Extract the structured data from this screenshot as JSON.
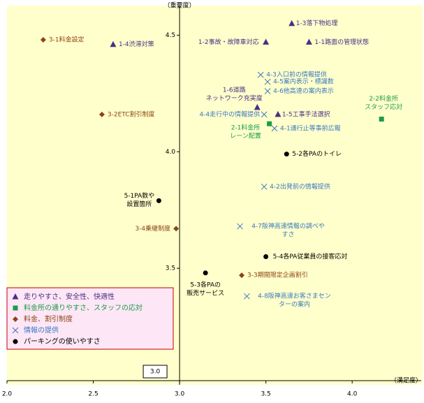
{
  "chart_data": {
    "type": "scatter",
    "y_label": "（重要度）",
    "x_label": "（満足度）",
    "xlim": [
      2.0,
      4.4
    ],
    "ylim": [
      3.0,
      4.6
    ],
    "xticks": [
      {
        "value": 2,
        "label": "2.0"
      },
      2.5,
      {
        "value": 3,
        "label": "3.0"
      },
      3.5,
      {
        "value": 4,
        "label": "4.0"
      }
    ],
    "yticks": [
      {
        "value": 3,
        "label": "3.0"
      },
      3.5,
      {
        "value": 4,
        "label": "4.0"
      },
      4.5
    ],
    "series": [
      {
        "name": "走りやすさ、安全性、快適性",
        "color": "#4b2e83",
        "marker": "triangle",
        "x": [
          3.65,
          2.615,
          3.5,
          3.75,
          3.45,
          3.57
        ],
        "values": [
          4.55,
          4.46,
          4.47,
          4.47,
          4.19,
          4.16
        ],
        "labels": [
          [
            "1-3落下物処理"
          ],
          [
            "1-4渋滞対策"
          ],
          [
            "1-2事故・故障車対応"
          ],
          [
            "1-1路面の管理状態"
          ],
          [
            "1-6道路",
            "ネットワーク充実度"
          ],
          [
            "1-5工事手法選択"
          ]
        ]
      },
      {
        "name": "料金所の通りやすさ、スタッフの応対",
        "color": "#1a9c4a",
        "marker": "square",
        "x": [
          4.17,
          3.52
        ],
        "values": [
          4.14,
          4.12
        ],
        "labels": [
          [
            "2-2料金所",
            "スタッフ応対"
          ],
          [
            "2-1料金所",
            "レーン配置"
          ]
        ]
      },
      {
        "name": "料金、割引制度",
        "color": "#8b4513",
        "marker": "diamond",
        "x": [
          2.21,
          2.55,
          2.98,
          3.36
        ],
        "values": [
          4.48,
          4.16,
          3.67,
          3.47
        ],
        "labels": [
          [
            "3-1料金設定"
          ],
          [
            "3-2ETC割引制度"
          ],
          [
            "3-4乗継制度"
          ],
          [
            "3-3期間限定企画割引"
          ]
        ]
      },
      {
        "name": "情報の提供",
        "color": "#3a78c0",
        "marker": "cross",
        "x": [
          3.47,
          3.51,
          3.51,
          3.49,
          3.55,
          3.49,
          3.35,
          3.39
        ],
        "values": [
          4.33,
          4.3,
          4.26,
          4.16,
          4.1,
          3.85,
          3.68,
          3.38
        ],
        "labels": [
          [
            "4-3入口前の情報提供"
          ],
          [
            "4-5案内表示・標識数"
          ],
          [
            "4-6他高速の案内表示"
          ],
          [
            "4-4走行中の情報提供"
          ],
          [
            "4-1通行止等事前広報"
          ],
          [
            "4-2出発前の情報提供"
          ],
          [
            "4-7阪神高速情報の調べや",
            "すさ"
          ],
          [
            "4-8阪神高速お客さまセン",
            "ターの案内"
          ]
        ]
      },
      {
        "name": "パーキングの使いやすさ",
        "color": "#000000",
        "marker": "circle",
        "x": [
          3.62,
          2.88,
          3.5,
          3.15
        ],
        "values": [
          3.99,
          3.79,
          3.55,
          3.48
        ],
        "labels": [
          [
            "5-2各PAのトイレ"
          ],
          [
            "5-1PA数や",
            "設置箇所"
          ],
          [
            "5-4各PA従業員の接客応対"
          ],
          [
            "5-3各PAの",
            "販売サービス"
          ]
        ]
      }
    ]
  }
}
